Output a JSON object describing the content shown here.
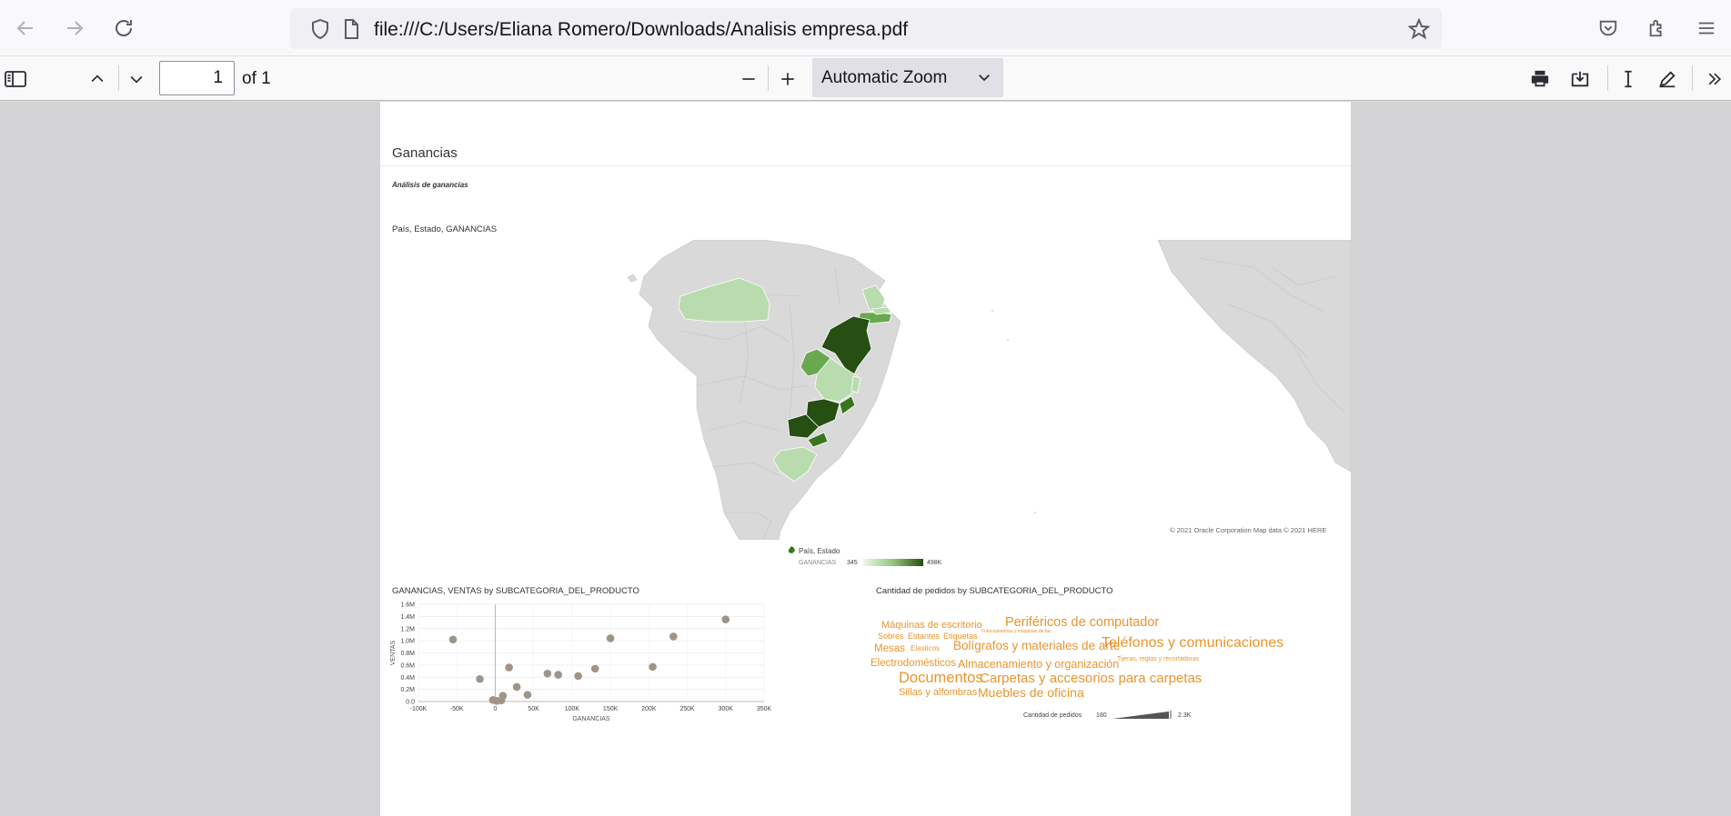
{
  "browser": {
    "url": "file:///C:/Users/Eliana Romero/Downloads/Analisis empresa.pdf",
    "icons": [
      "back-arrow-icon",
      "forward-arrow-icon",
      "reload-icon",
      "shield-icon",
      "file-icon",
      "star-icon",
      "pocket-icon",
      "extensions-icon",
      "menu-icon"
    ]
  },
  "pdf_toolbar": {
    "page_number": "1",
    "page_of": "of 1",
    "zoom": "Automatic Zoom"
  },
  "report": {
    "title": "Ganancias",
    "subtitle": "Análisis de ganancias",
    "map": {
      "title": "País, Estado, GANANCIAS",
      "copyright": "© 2021 Oracle Corporation   Map data © 2021 HERE",
      "legend_series": "País, Estado",
      "legend_measure": "GANANCIAS",
      "legend_min": "345",
      "legend_max": "498K",
      "colors": {
        "land": "#d9d9d9",
        "light": "#b9dcae",
        "mid": "#6aa84f",
        "dark": "#38761d",
        "darkest": "#274e13"
      }
    },
    "scatter_title": "GANANCIAS, VENTAS by SUBCATEGORIA_DEL_PRODUCTO",
    "wordcloud_title": "Cantidad de pedidos by SUBCATEGORIA_DEL_PRODUCTO",
    "wordcloud_legend": {
      "label": "Cantidad de pedidos",
      "min": "180",
      "max": "2.3K"
    }
  },
  "chart_data": [
    {
      "type": "scatter",
      "xlabel": "GANANCIAS",
      "ylabel": "VENTAS",
      "xlim": [
        -100000,
        350000
      ],
      "ylim": [
        0,
        1600000
      ],
      "x_ticks": [
        "-100K",
        "-50K",
        "0",
        "50K",
        "100K",
        "150K",
        "200K",
        "250K",
        "300K",
        "350K"
      ],
      "y_ticks": [
        "0.0",
        "0.2M",
        "0.4M",
        "0.6M",
        "0.8M",
        "1.0M",
        "1.2M",
        "1.4M",
        "1.6M"
      ],
      "color": "#9e948a",
      "points": [
        {
          "x": -55000,
          "y": 1020000
        },
        {
          "x": -20000,
          "y": 370000
        },
        {
          "x": -3000,
          "y": 25000
        },
        {
          "x": 2000,
          "y": 10000
        },
        {
          "x": 8000,
          "y": 20000
        },
        {
          "x": 10000,
          "y": 95000
        },
        {
          "x": 18000,
          "y": 560000
        },
        {
          "x": 28000,
          "y": 240000
        },
        {
          "x": 42000,
          "y": 110000
        },
        {
          "x": 68000,
          "y": 460000
        },
        {
          "x": 82000,
          "y": 440000
        },
        {
          "x": 108000,
          "y": 420000
        },
        {
          "x": 130000,
          "y": 540000
        },
        {
          "x": 150000,
          "y": 1040000
        },
        {
          "x": 205000,
          "y": 570000
        },
        {
          "x": 232000,
          "y": 1070000
        },
        {
          "x": 300000,
          "y": 1350000
        }
      ]
    },
    {
      "type": "table",
      "title": "Cantidad de pedidos by SUBCATEGORIA_DEL_PRODUCTO",
      "words": [
        {
          "text": "Máquinas de escritorio",
          "size": 11
        },
        {
          "text": "Periféricos de computador",
          "size": 14.5
        },
        {
          "text": "Sobres",
          "size": 9
        },
        {
          "text": "Estantes",
          "size": 9
        },
        {
          "text": "Etiquetas",
          "size": 9
        },
        {
          "text": "Fotocopiadoras y máquinas de fax",
          "size": 5
        },
        {
          "text": "Mesas",
          "size": 11.5
        },
        {
          "text": "Elasticos",
          "size": 8
        },
        {
          "text": "Bolígrafos y materiales de arte",
          "size": 13.5
        },
        {
          "text": "Teléfonos y comunicaciones",
          "size": 16
        },
        {
          "text": "Electrodomésticos",
          "size": 11.5
        },
        {
          "text": "Almacenamiento y organización",
          "size": 12.5
        },
        {
          "text": "Tijeras, reglas y recortadoras",
          "size": 7
        },
        {
          "text": "Documentos",
          "size": 16.5
        },
        {
          "text": "Carpetas y accesorios para carpetas",
          "size": 15
        },
        {
          "text": "Sillas y alfombras",
          "size": 11
        },
        {
          "text": "Muebles de oficina",
          "size": 14
        }
      ]
    }
  ]
}
